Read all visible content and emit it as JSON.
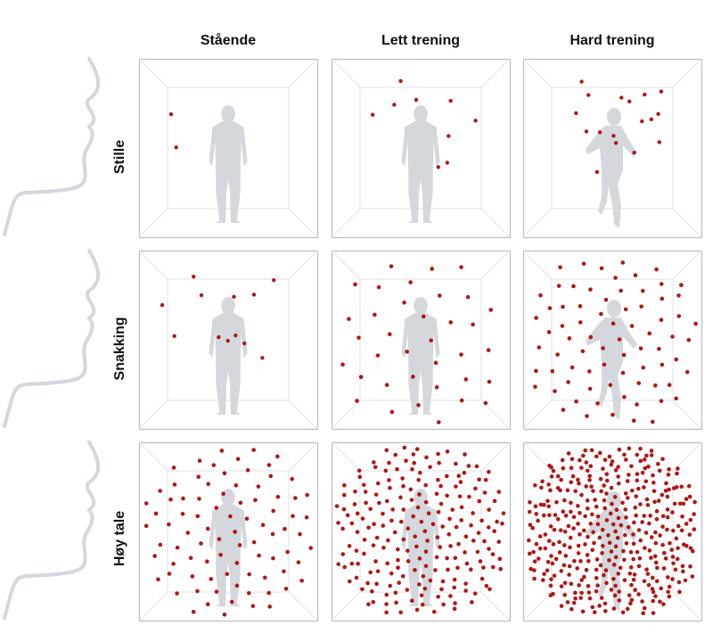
{
  "columns": [
    {
      "label": "Stående",
      "figure": "standing-person"
    },
    {
      "label": "Lett trening",
      "figure": "walking-person"
    },
    {
      "label": "Hard trening",
      "figure": "running-person"
    }
  ],
  "rows": [
    {
      "label": "Stille",
      "approx_dot_counts": [
        2,
        9,
        17
      ]
    },
    {
      "label": "Snakking",
      "approx_dot_counts": [
        12,
        36,
        75
      ]
    },
    {
      "label": "Høy tale",
      "approx_dot_counts": [
        85,
        210,
        380
      ]
    }
  ],
  "colors": {
    "dot": "#b01717",
    "figure": "#d4d7db",
    "face_line": "#d4d7db",
    "box_line": "#c9c9c9"
  }
}
